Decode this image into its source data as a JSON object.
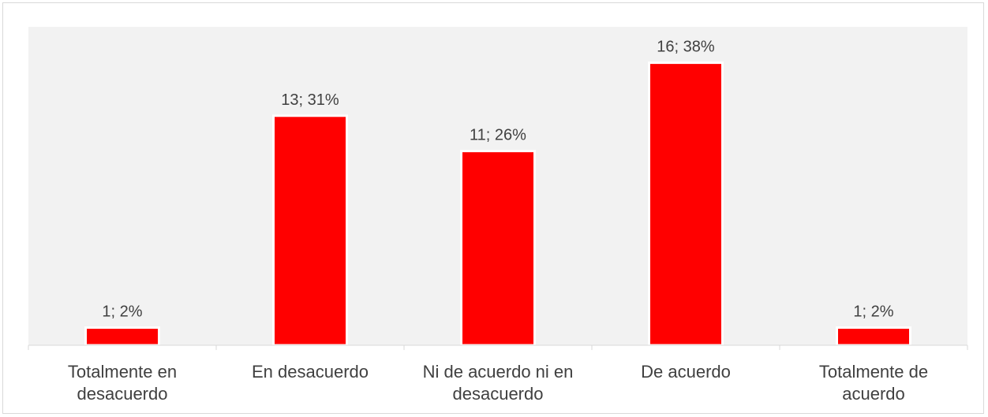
{
  "chart_data": {
    "type": "bar",
    "categories": [
      [
        "Totalmente en",
        "desacuerdo"
      ],
      [
        "En desacuerdo"
      ],
      [
        "Ni de acuerdo ni en",
        "desacuerdo"
      ],
      [
        "De acuerdo"
      ],
      [
        "Totalmente de",
        "acuerdo"
      ]
    ],
    "values": [
      1,
      13,
      11,
      16,
      1
    ],
    "data_labels": [
      "1; 2%",
      "13; 31%",
      "11; 26%",
      "16; 38%",
      "1; 2%"
    ],
    "ylim": [
      0,
      16
    ],
    "grid": false,
    "legend": "none",
    "colors": {
      "bar": "#ff0000",
      "bar_border": "#ffffff",
      "plot_background": "#f2f2f2",
      "axis": "#d9d9d9",
      "text": "#404040"
    }
  }
}
